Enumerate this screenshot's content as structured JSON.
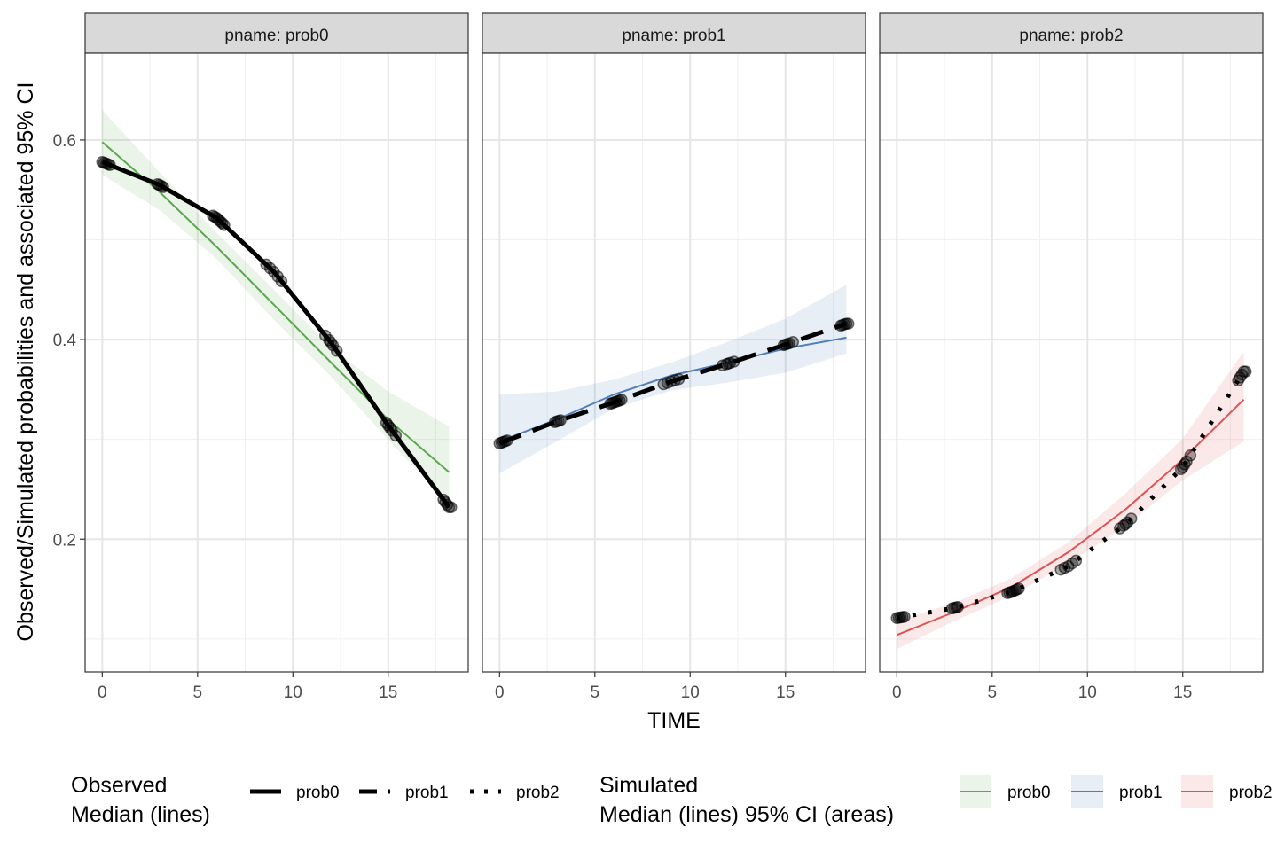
{
  "chart_data": {
    "type": "line",
    "facet_prefix": "pname: ",
    "xlabel": "TIME",
    "ylabel": "Observed/Simulated probabilities and associated 95% CI",
    "xlim": [
      -0.9,
      19.2
    ],
    "ylim": [
      0.067,
      0.687
    ],
    "x_ticks": [
      0,
      5,
      10,
      15
    ],
    "y_ticks": [
      0.2,
      0.4,
      0.6
    ],
    "grid": true,
    "colors": {
      "prob0": "#5aa84e",
      "prob1": "#4f7fb8",
      "prob2": "#e05252"
    },
    "legend": {
      "placement": "bottom",
      "observed_title_line1": "Observed",
      "observed_title_line2": "Median (lines)",
      "simulated_title_line1": "Simulated",
      "simulated_title_line2": "Median (lines) 95% CI (areas)",
      "observed_items": [
        {
          "label": "prob0",
          "linetype": "solid"
        },
        {
          "label": "prob1",
          "linetype": "dashed"
        },
        {
          "label": "prob2",
          "linetype": "dotted"
        }
      ],
      "simulated_items": [
        {
          "label": "prob0",
          "color": "#5aa84e"
        },
        {
          "label": "prob1",
          "color": "#4f7fb8"
        },
        {
          "label": "prob2",
          "color": "#e05252"
        }
      ]
    },
    "panels": [
      {
        "pname": "prob0",
        "sim_median": {
          "x": [
            0,
            3,
            6,
            9,
            12,
            15,
            18.2
          ],
          "y": [
            0.598,
            0.548,
            0.493,
            0.435,
            0.377,
            0.32,
            0.267
          ]
        },
        "sim_lower": [
          0.565,
          0.53,
          0.481,
          0.42,
          0.363,
          0.3,
          0.235
        ],
        "sim_upper": [
          0.63,
          0.568,
          0.507,
          0.45,
          0.392,
          0.348,
          0.313
        ],
        "obs_median": {
          "x": [
            0,
            3,
            6,
            9,
            12,
            15,
            18.2
          ],
          "y": [
            0.578,
            0.555,
            0.522,
            0.468,
            0.397,
            0.314,
            0.232
          ]
        },
        "points_x": [
          0,
          0.1,
          0.2,
          0.3,
          0.4,
          2.9,
          3.0,
          3.1,
          3.2,
          5.8,
          5.9,
          6.0,
          6.1,
          6.2,
          6.3,
          6.4,
          8.6,
          8.8,
          9.0,
          9.2,
          9.4,
          11.7,
          11.9,
          12.0,
          12.1,
          12.3,
          14.9,
          15.0,
          15.1,
          15.2,
          15.4,
          17.9,
          18.0,
          18.1,
          18.2,
          18.3
        ]
      },
      {
        "pname": "prob1",
        "sim_median": {
          "x": [
            0,
            3,
            6,
            9,
            12,
            15,
            18.2
          ],
          "y": [
            0.298,
            0.32,
            0.345,
            0.364,
            0.377,
            0.391,
            0.402
          ]
        },
        "sim_lower": [
          0.266,
          0.298,
          0.331,
          0.349,
          0.357,
          0.367,
          0.386
        ],
        "sim_upper": [
          0.345,
          0.348,
          0.36,
          0.377,
          0.398,
          0.421,
          0.455
        ],
        "obs_median": {
          "x": [
            0,
            3,
            6,
            9,
            12,
            15,
            18.2
          ],
          "y": [
            0.296,
            0.318,
            0.337,
            0.358,
            0.376,
            0.395,
            0.416
          ]
        },
        "points_x": [
          0,
          0.1,
          0.2,
          0.3,
          0.4,
          2.9,
          3.0,
          3.1,
          3.2,
          5.8,
          5.9,
          6.0,
          6.1,
          6.2,
          6.3,
          6.4,
          8.6,
          8.8,
          9.0,
          9.2,
          9.4,
          11.7,
          11.9,
          12.0,
          12.1,
          12.3,
          14.9,
          15.0,
          15.1,
          15.2,
          15.4,
          17.9,
          18.0,
          18.1,
          18.2,
          18.3
        ]
      },
      {
        "pname": "prob2",
        "sim_median": {
          "x": [
            0,
            3,
            6,
            9,
            12,
            15,
            18.2
          ],
          "y": [
            0.104,
            0.127,
            0.152,
            0.187,
            0.23,
            0.28,
            0.34
          ]
        },
        "sim_lower": [
          0.09,
          0.118,
          0.143,
          0.176,
          0.213,
          0.259,
          0.298
        ],
        "sim_upper": [
          0.118,
          0.136,
          0.161,
          0.197,
          0.246,
          0.301,
          0.388
        ],
        "obs_median": {
          "x": [
            0,
            3,
            6,
            9,
            12,
            15,
            18.2
          ],
          "y": [
            0.121,
            0.131,
            0.147,
            0.173,
            0.215,
            0.272,
            0.368
          ]
        },
        "points_x": [
          0,
          0.1,
          0.2,
          0.3,
          0.4,
          2.9,
          3.0,
          3.1,
          3.2,
          5.8,
          5.9,
          6.0,
          6.1,
          6.2,
          6.3,
          6.4,
          8.6,
          8.8,
          9.0,
          9.2,
          9.4,
          11.7,
          11.9,
          12.0,
          12.1,
          12.3,
          14.9,
          15.0,
          15.1,
          15.2,
          15.4,
          17.9,
          18.0,
          18.1,
          18.2,
          18.3
        ]
      }
    ]
  }
}
